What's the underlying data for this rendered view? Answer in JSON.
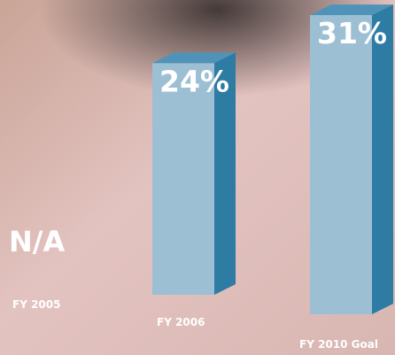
{
  "chart_data": {
    "type": "bar3d",
    "categories": [
      "FY 2005",
      "FY 2006",
      "FY 2010 Goal"
    ],
    "values": [
      null,
      24,
      31
    ],
    "value_labels": [
      "N/A",
      "24%",
      "31%"
    ],
    "color": "#9dbfd4"
  }
}
